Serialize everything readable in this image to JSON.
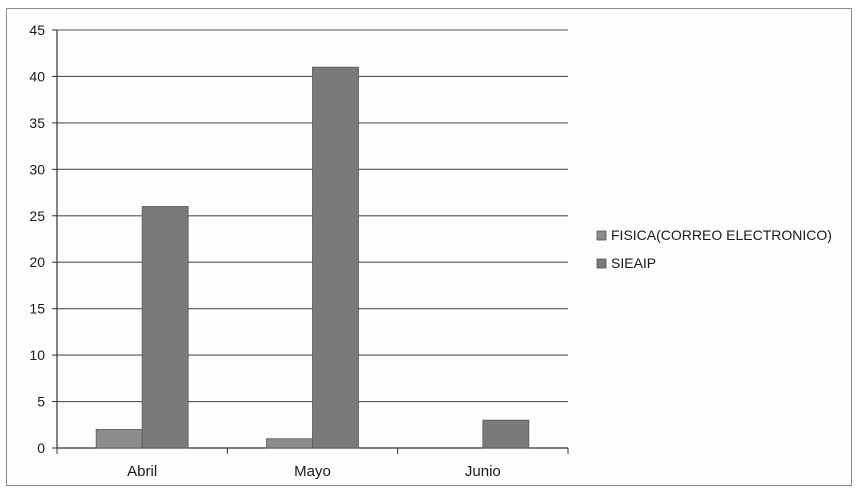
{
  "chart_data": {
    "type": "bar",
    "categories": [
      "Abril",
      "Mayo",
      "Junio"
    ],
    "series": [
      {
        "name": "FISICA(CORREO ELECTRONICO)",
        "values": [
          2,
          1,
          0
        ],
        "color": "#8c8c8c"
      },
      {
        "name": "SIEAIP",
        "values": [
          26,
          41,
          3
        ],
        "color": "#7a7a7a"
      }
    ],
    "ylim": [
      0,
      45
    ],
    "yticks": [
      0,
      5,
      10,
      15,
      20,
      25,
      30,
      35,
      40,
      45
    ],
    "grid": true,
    "legend_position": "right"
  }
}
